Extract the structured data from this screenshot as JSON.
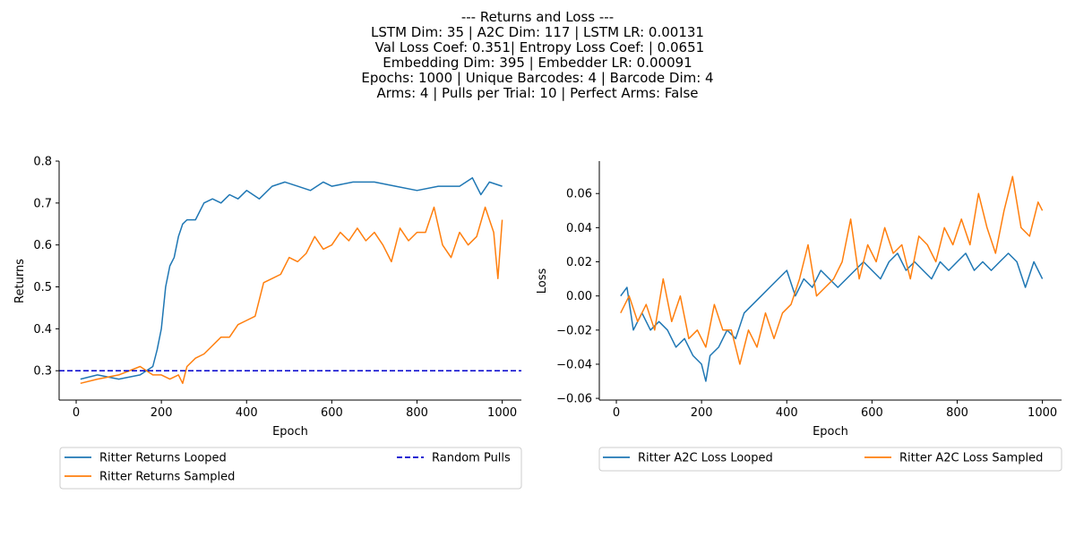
{
  "figure": {
    "title_lines": [
      "--- Returns and Loss ---",
      "LSTM Dim: 35 | A2C Dim: 117 | LSTM LR: 0.00131",
      " Val Loss Coef: 0.351| Entropy Loss Coef: | 0.0651",
      "Embedding Dim: 395 | Embedder LR: 0.00091",
      "Epochs: 1000 | Unique Barcodes: 4 | Barcode Dim: 4",
      "Arms: 4 | Pulls per Trial: 10 | Perfect Arms: False"
    ]
  },
  "chart_data": [
    {
      "type": "line",
      "xlabel": "Epoch",
      "ylabel": "Returns",
      "xlim": [
        -40,
        1045
      ],
      "ylim": [
        0.23,
        0.8
      ],
      "xticks": [
        0,
        200,
        400,
        600,
        800,
        1000
      ],
      "yticks": [
        0.3,
        0.4,
        0.5,
        0.6,
        0.7,
        0.8
      ],
      "ytick_labels": [
        "0.3",
        "0.4",
        "0.5",
        "0.6",
        "0.7",
        "0.8"
      ],
      "legend_placement": "below",
      "legend_columns": 2,
      "series": [
        {
          "name": "Ritter Returns Looped",
          "color": "#1f77b4",
          "style": "solid",
          "x": [
            10,
            50,
            100,
            150,
            180,
            190,
            200,
            210,
            220,
            230,
            240,
            250,
            260,
            280,
            300,
            320,
            340,
            360,
            380,
            400,
            430,
            460,
            490,
            520,
            550,
            580,
            600,
            650,
            700,
            750,
            800,
            850,
            900,
            930,
            950,
            970,
            1000
          ],
          "y": [
            0.28,
            0.29,
            0.28,
            0.29,
            0.31,
            0.35,
            0.4,
            0.5,
            0.55,
            0.57,
            0.62,
            0.65,
            0.66,
            0.66,
            0.7,
            0.71,
            0.7,
            0.72,
            0.71,
            0.73,
            0.71,
            0.74,
            0.75,
            0.74,
            0.73,
            0.75,
            0.74,
            0.75,
            0.75,
            0.74,
            0.73,
            0.74,
            0.74,
            0.76,
            0.72,
            0.75,
            0.74
          ]
        },
        {
          "name": "Ritter Returns Sampled",
          "color": "#ff7f0e",
          "style": "solid",
          "x": [
            10,
            50,
            100,
            150,
            180,
            200,
            220,
            240,
            250,
            260,
            280,
            300,
            320,
            340,
            360,
            380,
            400,
            420,
            440,
            460,
            480,
            500,
            520,
            540,
            560,
            580,
            600,
            620,
            640,
            660,
            680,
            700,
            720,
            740,
            760,
            780,
            800,
            820,
            840,
            860,
            880,
            900,
            920,
            940,
            960,
            980,
            990,
            1000
          ],
          "y": [
            0.27,
            0.28,
            0.29,
            0.31,
            0.29,
            0.29,
            0.28,
            0.29,
            0.27,
            0.31,
            0.33,
            0.34,
            0.36,
            0.38,
            0.38,
            0.41,
            0.42,
            0.43,
            0.51,
            0.52,
            0.53,
            0.57,
            0.56,
            0.58,
            0.62,
            0.59,
            0.6,
            0.63,
            0.61,
            0.64,
            0.61,
            0.63,
            0.6,
            0.56,
            0.64,
            0.61,
            0.63,
            0.63,
            0.69,
            0.6,
            0.57,
            0.63,
            0.6,
            0.62,
            0.69,
            0.63,
            0.52,
            0.66
          ]
        },
        {
          "name": "Random Pulls",
          "color": "#0000cc",
          "style": "dashed",
          "x": [
            -40,
            1045
          ],
          "y": [
            0.3,
            0.3
          ]
        }
      ]
    },
    {
      "type": "line",
      "xlabel": "Epoch",
      "ylabel": "Loss",
      "xlim": [
        -40,
        1045
      ],
      "ylim": [
        -0.061,
        0.079
      ],
      "xticks": [
        0,
        200,
        400,
        600,
        800,
        1000
      ],
      "yticks": [
        -0.06,
        -0.04,
        -0.02,
        0.0,
        0.02,
        0.04,
        0.06
      ],
      "ytick_labels": [
        "−0.06",
        "−0.04",
        "−0.02",
        "0.00",
        "0.02",
        "0.04",
        "0.06"
      ],
      "legend_placement": "below",
      "legend_columns": 2,
      "series": [
        {
          "name": "Ritter A2C Loss Looped",
          "color": "#1f77b4",
          "style": "solid",
          "x": [
            10,
            25,
            40,
            60,
            80,
            100,
            120,
            140,
            160,
            180,
            200,
            210,
            220,
            240,
            260,
            280,
            300,
            320,
            340,
            360,
            380,
            400,
            420,
            440,
            460,
            480,
            500,
            520,
            540,
            560,
            580,
            600,
            620,
            640,
            660,
            680,
            700,
            720,
            740,
            760,
            780,
            800,
            820,
            840,
            860,
            880,
            900,
            920,
            940,
            960,
            980,
            1000
          ],
          "y": [
            0.0,
            0.005,
            -0.02,
            -0.01,
            -0.02,
            -0.015,
            -0.02,
            -0.03,
            -0.025,
            -0.035,
            -0.04,
            -0.05,
            -0.035,
            -0.03,
            -0.02,
            -0.025,
            -0.01,
            -0.005,
            0.0,
            0.005,
            0.01,
            0.015,
            0.0,
            0.01,
            0.005,
            0.015,
            0.01,
            0.005,
            0.01,
            0.015,
            0.02,
            0.015,
            0.01,
            0.02,
            0.025,
            0.015,
            0.02,
            0.015,
            0.01,
            0.02,
            0.015,
            0.02,
            0.025,
            0.015,
            0.02,
            0.015,
            0.02,
            0.025,
            0.02,
            0.005,
            0.02,
            0.01
          ]
        },
        {
          "name": "Ritter A2C Loss Sampled",
          "color": "#ff7f0e",
          "style": "solid",
          "x": [
            10,
            30,
            50,
            70,
            90,
            110,
            130,
            150,
            170,
            190,
            210,
            230,
            250,
            270,
            290,
            310,
            330,
            350,
            370,
            390,
            410,
            430,
            450,
            470,
            490,
            510,
            530,
            550,
            570,
            590,
            610,
            630,
            650,
            670,
            690,
            710,
            730,
            750,
            770,
            790,
            810,
            830,
            850,
            870,
            890,
            910,
            930,
            950,
            970,
            990,
            1000
          ],
          "y": [
            -0.01,
            0.0,
            -0.015,
            -0.005,
            -0.02,
            0.01,
            -0.015,
            0.0,
            -0.025,
            -0.02,
            -0.03,
            -0.005,
            -0.02,
            -0.02,
            -0.04,
            -0.02,
            -0.03,
            -0.01,
            -0.025,
            -0.01,
            -0.005,
            0.01,
            0.03,
            0.0,
            0.005,
            0.01,
            0.02,
            0.045,
            0.01,
            0.03,
            0.02,
            0.04,
            0.025,
            0.03,
            0.01,
            0.035,
            0.03,
            0.02,
            0.04,
            0.03,
            0.045,
            0.03,
            0.06,
            0.04,
            0.025,
            0.05,
            0.07,
            0.04,
            0.035,
            0.055,
            0.05
          ]
        }
      ]
    }
  ]
}
